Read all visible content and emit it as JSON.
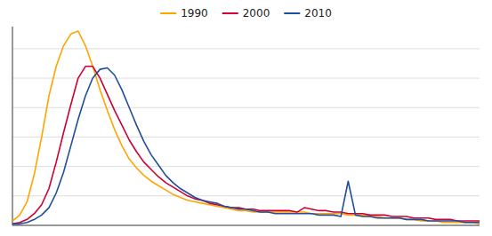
{
  "chart_data": {
    "type": "line",
    "x": [
      16,
      17,
      18,
      19,
      20,
      21,
      22,
      23,
      24,
      25,
      26,
      27,
      28,
      29,
      30,
      31,
      32,
      33,
      34,
      35,
      36,
      37,
      38,
      39,
      40,
      41,
      42,
      43,
      44,
      45,
      46,
      47,
      48,
      49,
      50,
      51,
      52,
      53,
      54,
      55,
      56,
      57,
      58,
      59,
      60,
      61,
      62,
      63,
      64,
      65,
      66,
      67,
      68,
      69,
      70,
      71,
      72,
      73,
      74,
      75,
      76,
      77,
      78,
      79,
      80
    ],
    "series": [
      {
        "name": "1990",
        "color": "#FFA500",
        "values": [
          3,
          7,
          16,
          35,
          60,
          88,
          108,
          122,
          130,
          132,
          122,
          108,
          92,
          78,
          65,
          54,
          45,
          39,
          34,
          30,
          27,
          24,
          21,
          19,
          17,
          16,
          15,
          14,
          13,
          12,
          11,
          10,
          10,
          9,
          9,
          9,
          9,
          9,
          9,
          9,
          9,
          8,
          8,
          8,
          8,
          8,
          7,
          7,
          7,
          6,
          6,
          5,
          5,
          5,
          4,
          4,
          3,
          3,
          3,
          2,
          2,
          2,
          2,
          2,
          1
        ]
      },
      {
        "name": "2000",
        "color": "#CC0033",
        "values": [
          1,
          2,
          4,
          8,
          14,
          25,
          43,
          63,
          82,
          100,
          108,
          108,
          100,
          89,
          78,
          68,
          58,
          50,
          43,
          38,
          33,
          29,
          26,
          23,
          20,
          18,
          17,
          15,
          14,
          13,
          12,
          12,
          11,
          11,
          10,
          10,
          10,
          10,
          10,
          9,
          12,
          11,
          10,
          10,
          9,
          9,
          8,
          8,
          8,
          7,
          7,
          7,
          6,
          6,
          6,
          5,
          5,
          5,
          4,
          4,
          4,
          3,
          3,
          3,
          3
        ]
      },
      {
        "name": "2010",
        "color": "#1F4E9C",
        "values": [
          1,
          1,
          2,
          4,
          7,
          12,
          22,
          36,
          54,
          72,
          88,
          100,
          106,
          107,
          102,
          92,
          80,
          68,
          57,
          48,
          41,
          34,
          29,
          25,
          22,
          19,
          17,
          16,
          15,
          13,
          12,
          11,
          11,
          10,
          9,
          9,
          8,
          8,
          8,
          8,
          8,
          8,
          7,
          7,
          7,
          6,
          30,
          7,
          6,
          6,
          5,
          5,
          5,
          5,
          4,
          4,
          4,
          3,
          3,
          3,
          3,
          3,
          2,
          2,
          2
        ]
      }
    ],
    "xlim": [
      16,
      80
    ],
    "ylim": [
      0,
      135
    ],
    "yticks": [
      20,
      40,
      60,
      80,
      100,
      120
    ],
    "grid": true,
    "legend": "top",
    "tick_labels": false
  }
}
